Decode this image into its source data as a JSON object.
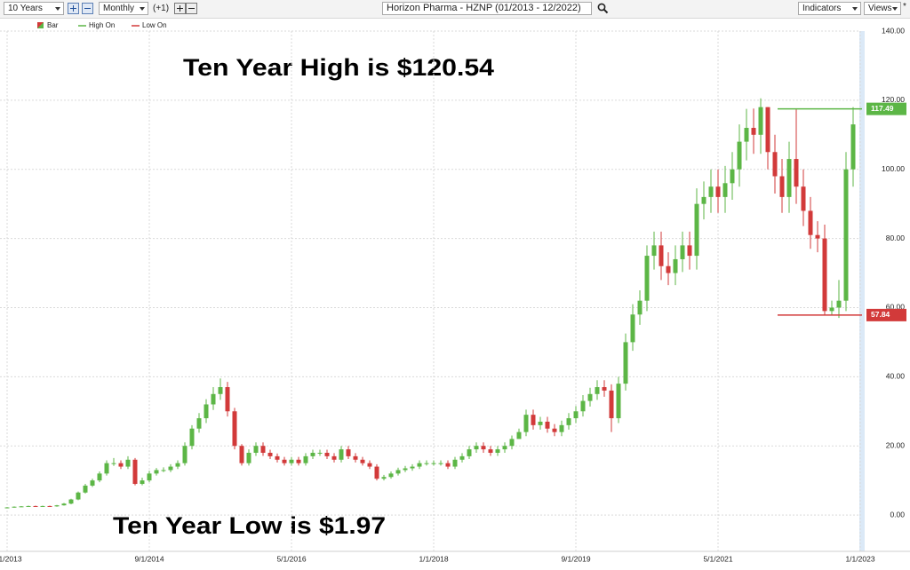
{
  "toolbar": {
    "range": "10 Years",
    "interval": "Monthly",
    "offset": "(+1)",
    "symbol": "Horizon Pharma - HZNP (01/2013 - 12/2022)",
    "indicators": "Indicators",
    "views": "Views"
  },
  "chart_data": {
    "type": "candlestick",
    "annotations": [
      "Ten Year High is $120.54",
      "Ten Year Low is $1.97"
    ],
    "categories": [
      "1/1/2013",
      "2/1/2013",
      "3/1/2013",
      "4/1/2013",
      "5/1/2013",
      "6/1/2013",
      "7/1/2013",
      "8/1/2013",
      "9/1/2013",
      "10/1/2013",
      "11/1/2013",
      "12/1/2013",
      "1/1/2014",
      "2/1/2014",
      "3/1/2014",
      "4/1/2014",
      "5/1/2014",
      "6/1/2014",
      "7/1/2014",
      "8/1/2014",
      "9/1/2014",
      "10/1/2014",
      "11/1/2014",
      "12/1/2014",
      "1/1/2015",
      "2/1/2015",
      "3/1/2015",
      "4/1/2015",
      "5/1/2015",
      "6/1/2015",
      "7/1/2015",
      "8/1/2015",
      "9/1/2015",
      "10/1/2015",
      "11/1/2015",
      "12/1/2015",
      "1/1/2016",
      "2/1/2016",
      "3/1/2016",
      "4/1/2016",
      "5/1/2016",
      "6/1/2016",
      "7/1/2016",
      "8/1/2016",
      "9/1/2016",
      "10/1/2016",
      "11/1/2016",
      "12/1/2016",
      "1/1/2017",
      "2/1/2017",
      "3/1/2017",
      "4/1/2017",
      "5/1/2017",
      "6/1/2017",
      "7/1/2017",
      "8/1/2017",
      "9/1/2017",
      "10/1/2017",
      "11/1/2017",
      "12/1/2017",
      "1/1/2018",
      "2/1/2018",
      "3/1/2018",
      "4/1/2018",
      "5/1/2018",
      "6/1/2018",
      "7/1/2018",
      "8/1/2018",
      "9/1/2018",
      "10/1/2018",
      "11/1/2018",
      "12/1/2018",
      "1/1/2019",
      "2/1/2019",
      "3/1/2019",
      "4/1/2019",
      "5/1/2019",
      "6/1/2019",
      "7/1/2019",
      "8/1/2019",
      "9/1/2019",
      "10/1/2019",
      "11/1/2019",
      "12/1/2019",
      "1/1/2020",
      "2/1/2020",
      "3/1/2020",
      "4/1/2020",
      "5/1/2020",
      "6/1/2020",
      "7/1/2020",
      "8/1/2020",
      "9/1/2020",
      "10/1/2020",
      "11/1/2020",
      "12/1/2020",
      "1/1/2021",
      "2/1/2021",
      "3/1/2021",
      "4/1/2021",
      "5/1/2021",
      "6/1/2021",
      "7/1/2021",
      "8/1/2021",
      "9/1/2021",
      "10/1/2021",
      "11/1/2021",
      "12/1/2021",
      "1/1/2022",
      "2/1/2022",
      "3/1/2022",
      "4/1/2022",
      "5/1/2022",
      "6/1/2022",
      "7/1/2022",
      "8/1/2022",
      "9/1/2022",
      "10/1/2022",
      "11/1/2022",
      "12/1/2022"
    ],
    "series": [
      {
        "name": "Bar",
        "up_color": "#5cb646",
        "down_color": "#d23a3a",
        "open": [
          2.0,
          2.2,
          2.4,
          2.5,
          2.6,
          2.5,
          2.6,
          2.5,
          2.8,
          3.3,
          4.5,
          6.5,
          8.5,
          10,
          12,
          15,
          15,
          14,
          16,
          9,
          10,
          12,
          13,
          13,
          14,
          15,
          20,
          25,
          28,
          32,
          35,
          37,
          30,
          20,
          15,
          18,
          20,
          18,
          17,
          16,
          15,
          16,
          15,
          17,
          18,
          18,
          17,
          16,
          19,
          17,
          16,
          15,
          14,
          10.5,
          11,
          12,
          13,
          13.5,
          14,
          15,
          15,
          15,
          15,
          14,
          16,
          17,
          19,
          20,
          19,
          18,
          19,
          20,
          22,
          24,
          29,
          26,
          27,
          25,
          24,
          26,
          28,
          30,
          33,
          35,
          37,
          36,
          28,
          38,
          50,
          58,
          62,
          75,
          78,
          72,
          70,
          74,
          78,
          75,
          90,
          92,
          95,
          92,
          96,
          100,
          108,
          112,
          110,
          118,
          105,
          98,
          92,
          103,
          95,
          88,
          81,
          80,
          59,
          60,
          62,
          100
        ],
        "high": [
          2.3,
          2.5,
          2.6,
          2.7,
          2.7,
          2.7,
          2.7,
          2.9,
          3.5,
          4.7,
          6.8,
          9.0,
          10.5,
          12.6,
          15.8,
          16.5,
          15.8,
          17,
          16.5,
          10.8,
          12.8,
          13.6,
          13.8,
          14.7,
          15.8,
          21,
          26,
          29.5,
          33.5,
          37,
          39.5,
          38.5,
          31,
          20.5,
          19,
          21,
          21,
          18.9,
          17.8,
          16.8,
          16.8,
          16.8,
          17.9,
          18.9,
          18.9,
          18.9,
          17.9,
          20,
          20,
          17.9,
          16.8,
          15.8,
          14.7,
          11.6,
          12.6,
          13.7,
          14.2,
          14.7,
          15.8,
          15.8,
          15.8,
          15.8,
          15.8,
          16.8,
          17.9,
          20,
          21,
          21,
          20,
          20,
          21,
          23,
          25,
          30.5,
          30.5,
          28.4,
          28.4,
          26.3,
          27.3,
          29.5,
          31.5,
          34.7,
          36.8,
          39,
          39,
          37.8,
          40,
          52.5,
          61,
          65,
          78,
          82,
          82,
          76,
          78,
          82,
          82,
          94.5,
          96.5,
          100,
          100,
          101,
          105,
          113,
          117.5,
          117.6,
          120.54,
          118,
          110,
          103,
          108,
          117.49,
          100,
          92,
          85,
          84,
          62,
          68,
          105,
          118
        ],
        "low": [
          1.97,
          2.1,
          2.3,
          2.4,
          2.4,
          2.4,
          2.4,
          2.4,
          2.7,
          3.1,
          4.3,
          6.2,
          8.1,
          9.5,
          11.4,
          14.2,
          13.3,
          13.3,
          8.6,
          8.6,
          9.5,
          11.4,
          12.4,
          12.4,
          13.3,
          14.3,
          19,
          23.8,
          26.6,
          30.4,
          33.3,
          28.5,
          19,
          14.3,
          14.3,
          17.1,
          17.1,
          16.2,
          15.2,
          14.3,
          14.3,
          14.3,
          14.3,
          16.2,
          17.1,
          16.2,
          15.2,
          15.2,
          16.2,
          15.2,
          14.3,
          13.3,
          10,
          10,
          10.5,
          11.4,
          12.4,
          12.8,
          13.3,
          14.3,
          14.3,
          14.3,
          13.3,
          13.3,
          15.2,
          16.2,
          18,
          18,
          17.1,
          17.1,
          18,
          19,
          22.8,
          22.8,
          24.7,
          24.7,
          23.8,
          22.8,
          22.8,
          24.7,
          26.6,
          28.5,
          31.4,
          33.3,
          34.2,
          24,
          26.6,
          36,
          47.5,
          55,
          59,
          71,
          68,
          66.5,
          66.5,
          70.3,
          71,
          71,
          85.5,
          87.4,
          87.4,
          87.4,
          91.2,
          95,
          102.6,
          104.5,
          104.5,
          100,
          93,
          87.4,
          87.4,
          90,
          83.6,
          77,
          76,
          57.84,
          57.84,
          57,
          59,
          95
        ],
        "close": [
          2.2,
          2.4,
          2.5,
          2.6,
          2.5,
          2.6,
          2.5,
          2.8,
          3.3,
          4.5,
          6.5,
          8.5,
          10,
          12,
          15,
          15,
          14,
          16,
          9,
          10,
          12,
          13,
          13,
          14,
          15,
          20,
          25,
          28,
          32,
          35,
          37,
          30,
          20,
          15,
          18,
          20,
          18,
          17,
          16,
          15,
          16,
          15,
          17,
          18,
          18,
          17,
          16,
          19,
          17,
          16,
          15,
          14,
          10.5,
          11,
          12,
          13,
          13.5,
          14,
          15,
          15,
          15,
          15,
          14,
          16,
          17,
          19,
          20,
          19,
          18,
          19,
          20,
          22,
          24,
          29,
          26,
          27,
          25,
          24,
          26,
          28,
          30,
          33,
          35,
          37,
          36,
          28,
          38,
          50,
          58,
          62,
          75,
          78,
          72,
          70,
          74,
          78,
          75,
          90,
          92,
          95,
          92,
          96,
          100,
          108,
          112,
          110,
          118,
          105,
          98,
          92,
          103,
          95,
          88,
          81,
          80,
          59,
          60,
          62,
          100,
          113
        ]
      }
    ],
    "reference_lines": [
      {
        "name": "High On",
        "value": 117.49,
        "color": "#5cb646"
      },
      {
        "name": "Low On",
        "value": 57.84,
        "color": "#d23a3a"
      }
    ],
    "ylim": [
      -10,
      140
    ],
    "yticks": [
      {
        "value": 0,
        "label": "0.00"
      },
      {
        "value": 20,
        "label": "20.00"
      },
      {
        "value": 40,
        "label": "40.00"
      },
      {
        "value": 60,
        "label": "60.00"
      },
      {
        "value": 80,
        "label": "80.00"
      },
      {
        "value": 100,
        "label": "100.00"
      },
      {
        "value": 120,
        "label": "120.00"
      },
      {
        "value": 140,
        "label": "140.00"
      }
    ],
    "xticks": [
      "1/1/2013",
      "9/1/2014",
      "5/1/2016",
      "1/1/2018",
      "9/1/2019",
      "5/1/2021",
      "1/1/2023"
    ],
    "grid": true
  }
}
